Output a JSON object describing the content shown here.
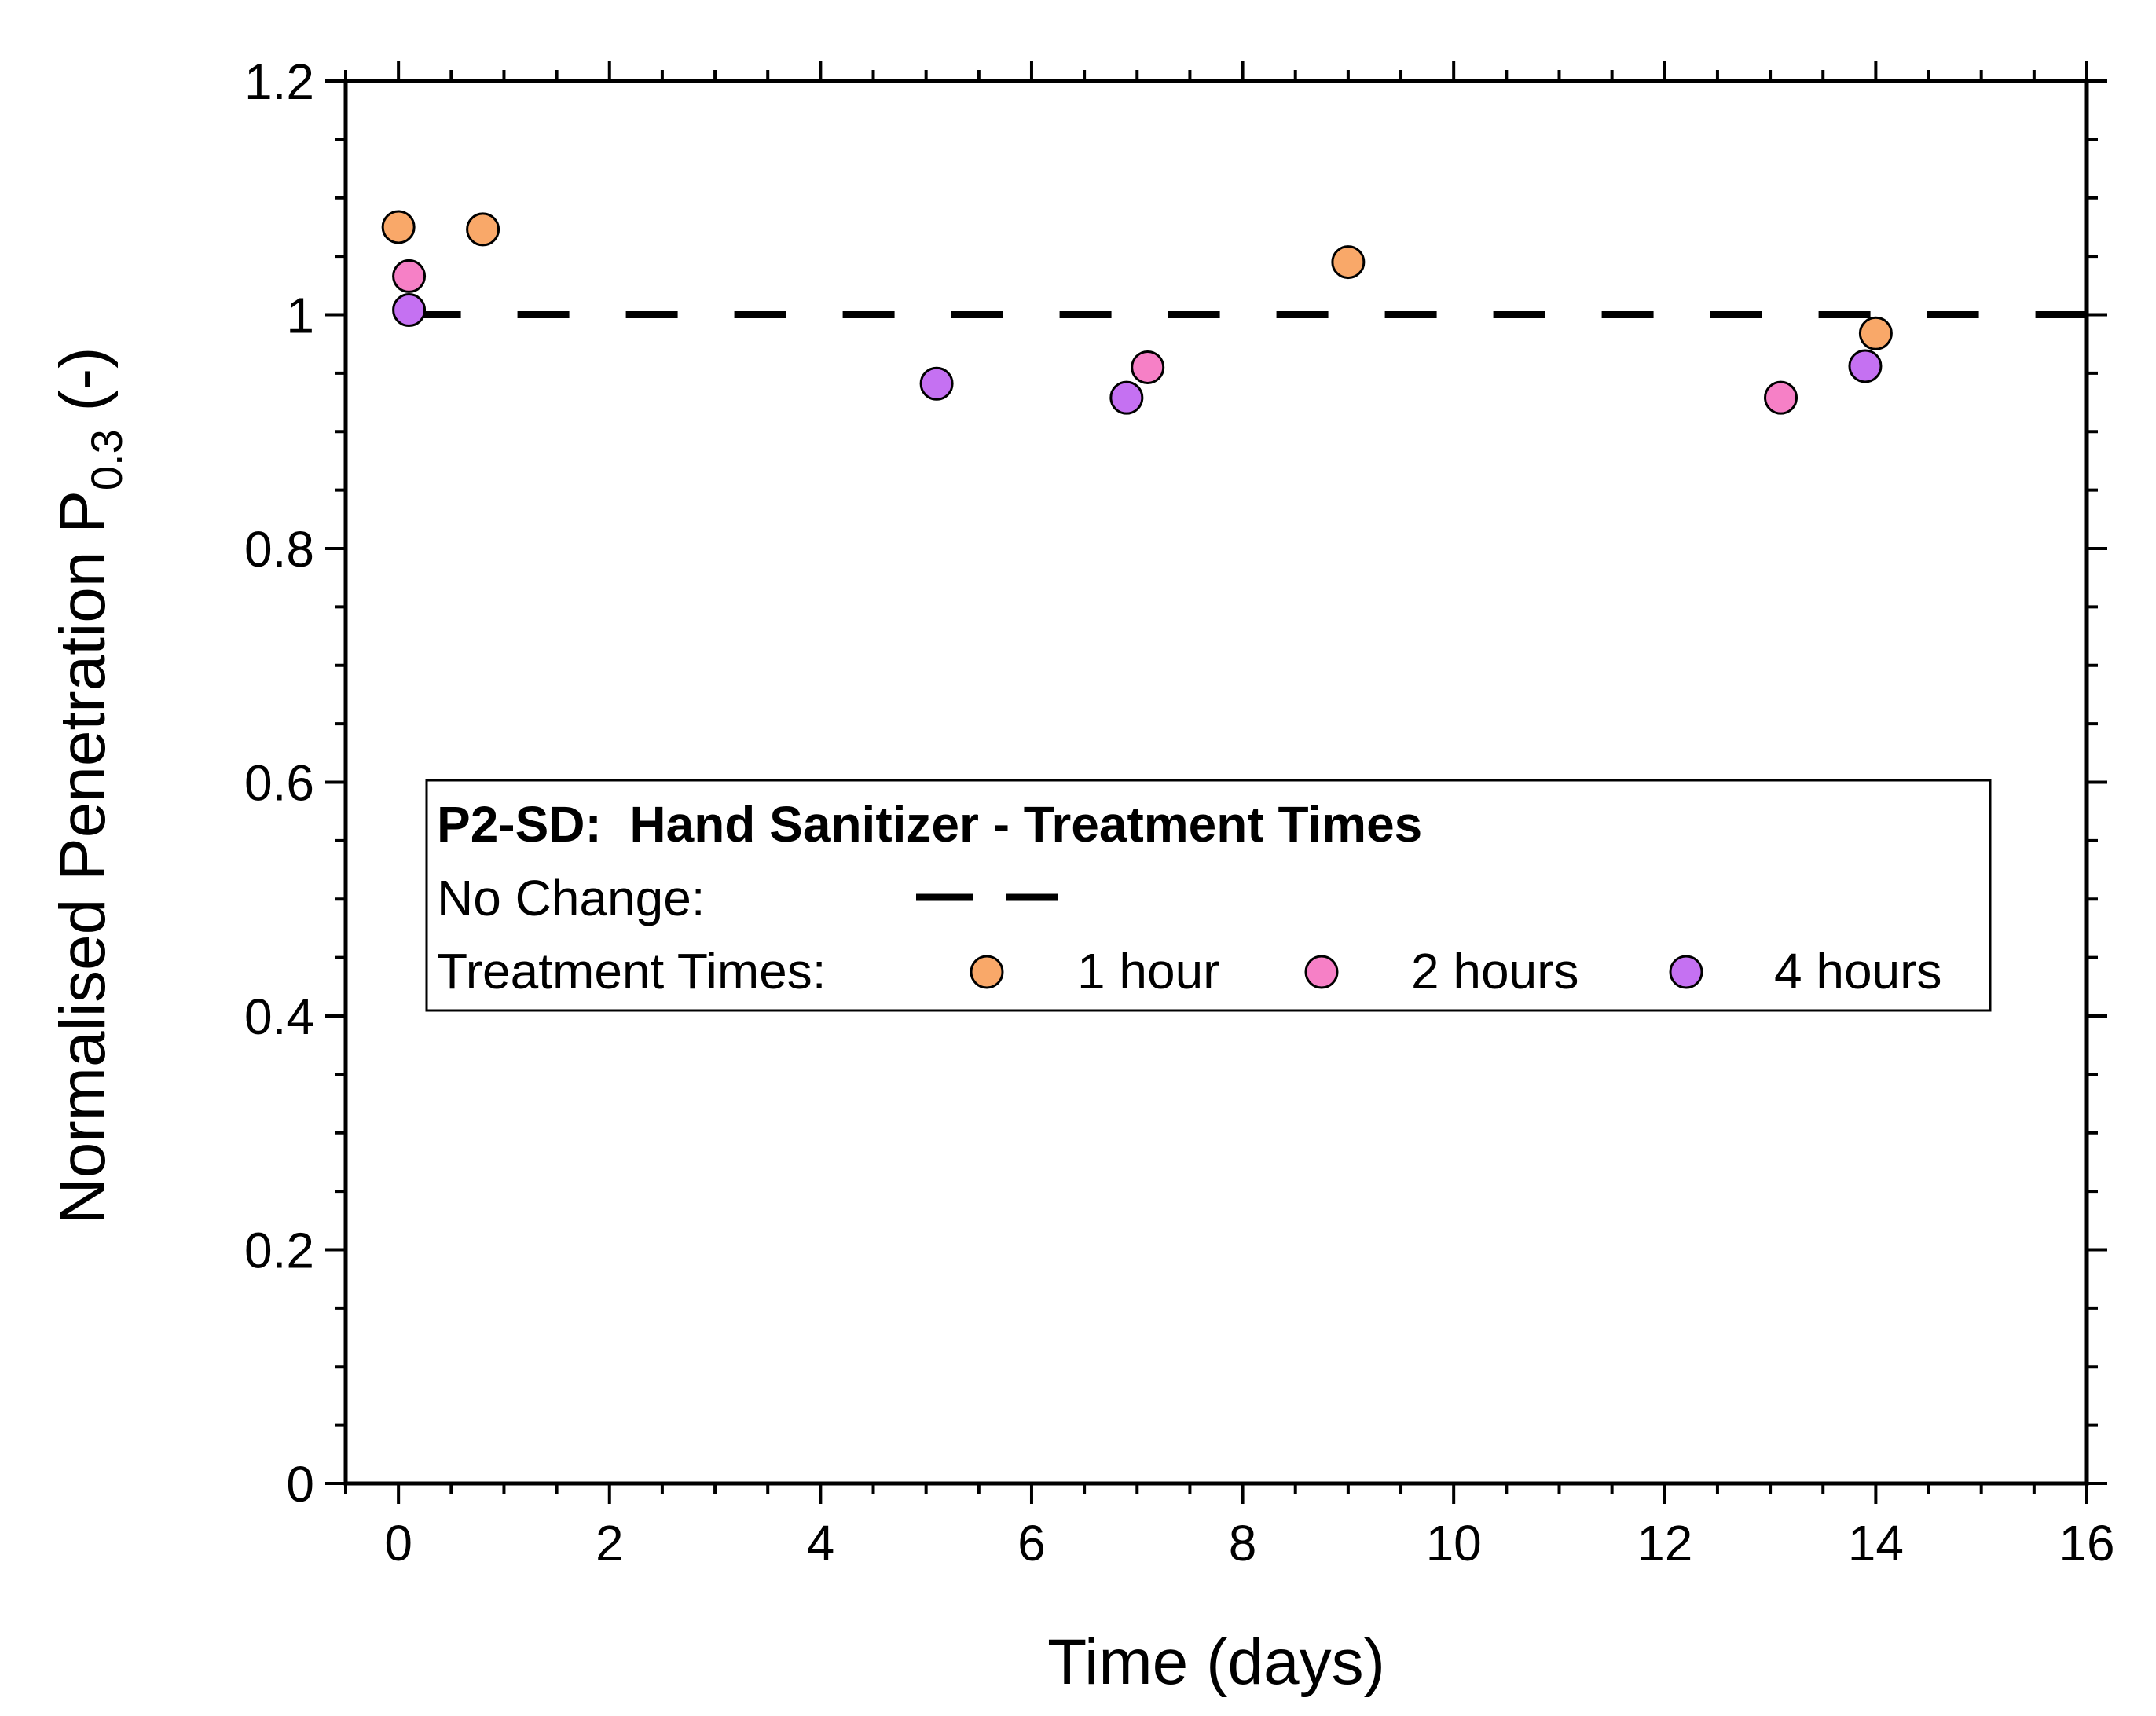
{
  "chart_data": {
    "type": "scatter",
    "title": "",
    "xlabel": "Time (days)",
    "ylabel": {
      "main": "Normalised Penetration P",
      "subscript": "0.3",
      "suffix": " (-)"
    },
    "xlim": [
      -0.5,
      16
    ],
    "ylim": [
      0,
      1.2
    ],
    "xticks": [
      0,
      2,
      4,
      6,
      8,
      10,
      12,
      14,
      16
    ],
    "xtick_labels": [
      "0",
      "2",
      "4",
      "6",
      "8",
      "10",
      "12",
      "14",
      "16"
    ],
    "yticks": [
      0,
      0.2,
      0.4,
      0.6,
      0.8,
      1.0,
      1.2
    ],
    "ytick_labels": [
      "0",
      "0.2",
      "0.4",
      "0.6",
      "0.8",
      "1",
      "1.2"
    ],
    "x_minor_step": 0.5,
    "y_minor_step": 0.05,
    "grid": false,
    "reference_line": {
      "name": "No Change",
      "y": 1.0,
      "x_start": 0.1,
      "x_end": 16,
      "style": "dashed",
      "color": "#000000"
    },
    "series": [
      {
        "name": "1 hour",
        "color": "#F9A869",
        "points": [
          {
            "x": 0.0,
            "y": 1.075
          },
          {
            "x": 0.8,
            "y": 1.073
          },
          {
            "x": 9.0,
            "y": 1.045
          },
          {
            "x": 14.0,
            "y": 0.984
          }
        ]
      },
      {
        "name": "2 hours",
        "color": "#F680C6",
        "points": [
          {
            "x": 0.1,
            "y": 1.033
          },
          {
            "x": 7.1,
            "y": 0.955
          },
          {
            "x": 13.1,
            "y": 0.929
          }
        ]
      },
      {
        "name": "4 hours",
        "color": "#C571F2",
        "points": [
          {
            "x": 0.1,
            "y": 1.004
          },
          {
            "x": 5.1,
            "y": 0.941
          },
          {
            "x": 6.9,
            "y": 0.929
          },
          {
            "x": 13.9,
            "y": 0.956
          }
        ]
      }
    ],
    "legend": {
      "position": "center-left",
      "title": "P2-SD:  Hand Sanitizer - Treatment Times",
      "line_label": "No Change:",
      "markers_label": "Treatment Times:",
      "entries": [
        "1 hour",
        "2 hours",
        "4 hours"
      ]
    }
  }
}
